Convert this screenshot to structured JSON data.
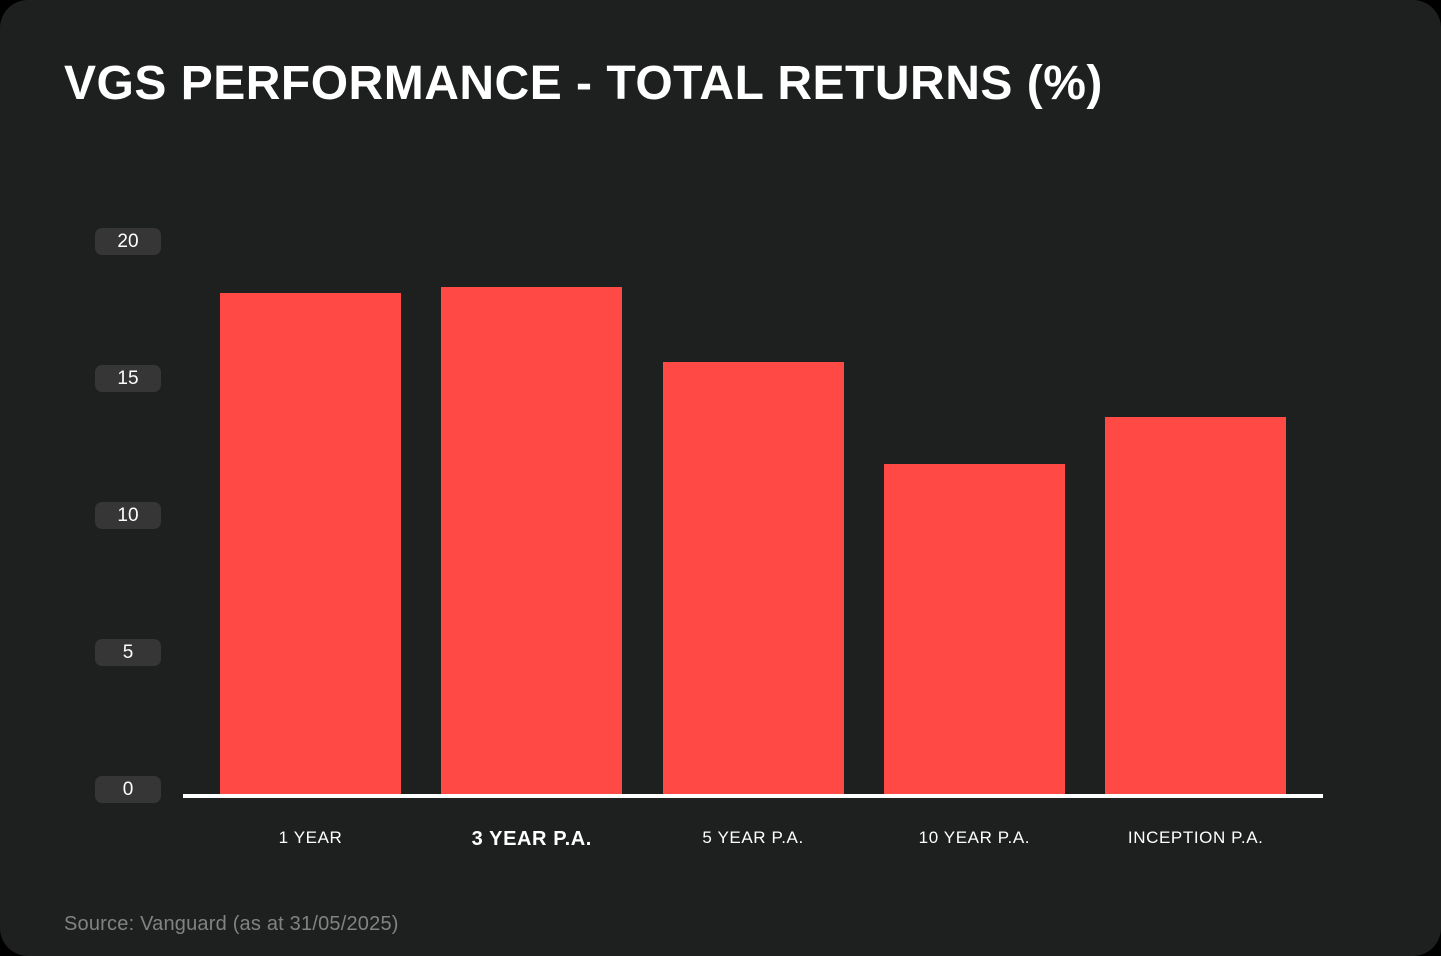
{
  "title": "VGS PERFORMANCE - TOTAL RETURNS (%)",
  "source_note": "Source: Vanguard (as at 31/05/2025)",
  "colors": {
    "page_background": "#000000",
    "card_background": "#1e1f1f",
    "bar": "#fe4944",
    "tick_pill_background": "#363636",
    "axis_line": "#ffffff",
    "label_text": "#ffffff",
    "source_text": "#828282"
  },
  "chart_data": {
    "type": "bar",
    "title": "VGS PERFORMANCE - TOTAL RETURNS (%)",
    "categories": [
      "1 YEAR",
      "3 YEAR P.A.",
      "5 YEAR P.A.",
      "10 YEAR P.A.",
      "INCEPTION P.A."
    ],
    "values": [
      18.1,
      18.3,
      15.6,
      11.9,
      13.6
    ],
    "emphasized_category": "3 YEAR P.A.",
    "xlabel": "",
    "ylabel": "",
    "yticks": [
      20,
      15,
      10,
      5,
      0
    ],
    "ylim": [
      0,
      20
    ],
    "grid": false,
    "legend": "none",
    "bar_color": "#fe4944"
  }
}
